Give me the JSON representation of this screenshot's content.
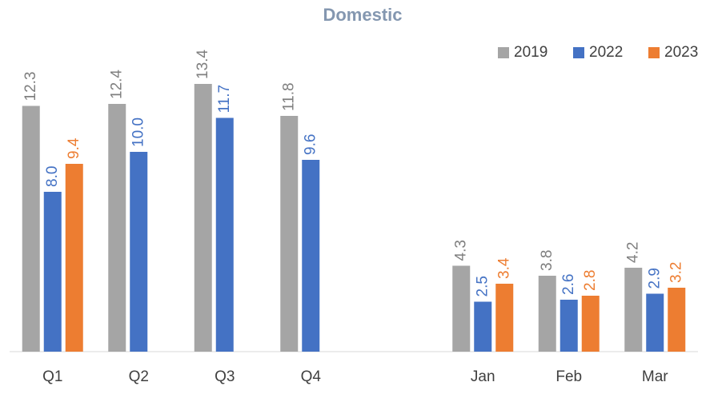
{
  "chart_data": {
    "type": "bar",
    "title": "Domestic",
    "categories": [
      "Q1",
      "Q2",
      "Q3",
      "Q4",
      null,
      "Jan",
      "Feb",
      "Mar"
    ],
    "series": [
      {
        "name": "2019",
        "color": "#a5a5a5",
        "values": [
          12.3,
          12.4,
          13.4,
          11.8,
          null,
          4.3,
          3.8,
          4.2
        ],
        "value_labels": [
          "12.3",
          "12.4",
          "13.4",
          "11.8",
          null,
          "4.3",
          "3.8",
          "4.2"
        ]
      },
      {
        "name": "2022",
        "color": "#4472c4",
        "values": [
          8.0,
          10.0,
          11.7,
          9.6,
          null,
          2.5,
          2.6,
          2.9
        ],
        "value_labels": [
          "8.0",
          "10.0",
          "11.7",
          "9.6",
          null,
          "2.5",
          "2.6",
          "2.9"
        ]
      },
      {
        "name": "2023",
        "color": "#ed7d31",
        "values": [
          9.4,
          null,
          null,
          null,
          null,
          3.4,
          2.8,
          3.2
        ],
        "value_labels": [
          "9.4",
          null,
          null,
          null,
          null,
          "3.4",
          "2.8",
          "3.2"
        ]
      }
    ],
    "ylim": [
      0,
      16
    ],
    "legend": "top-right"
  }
}
